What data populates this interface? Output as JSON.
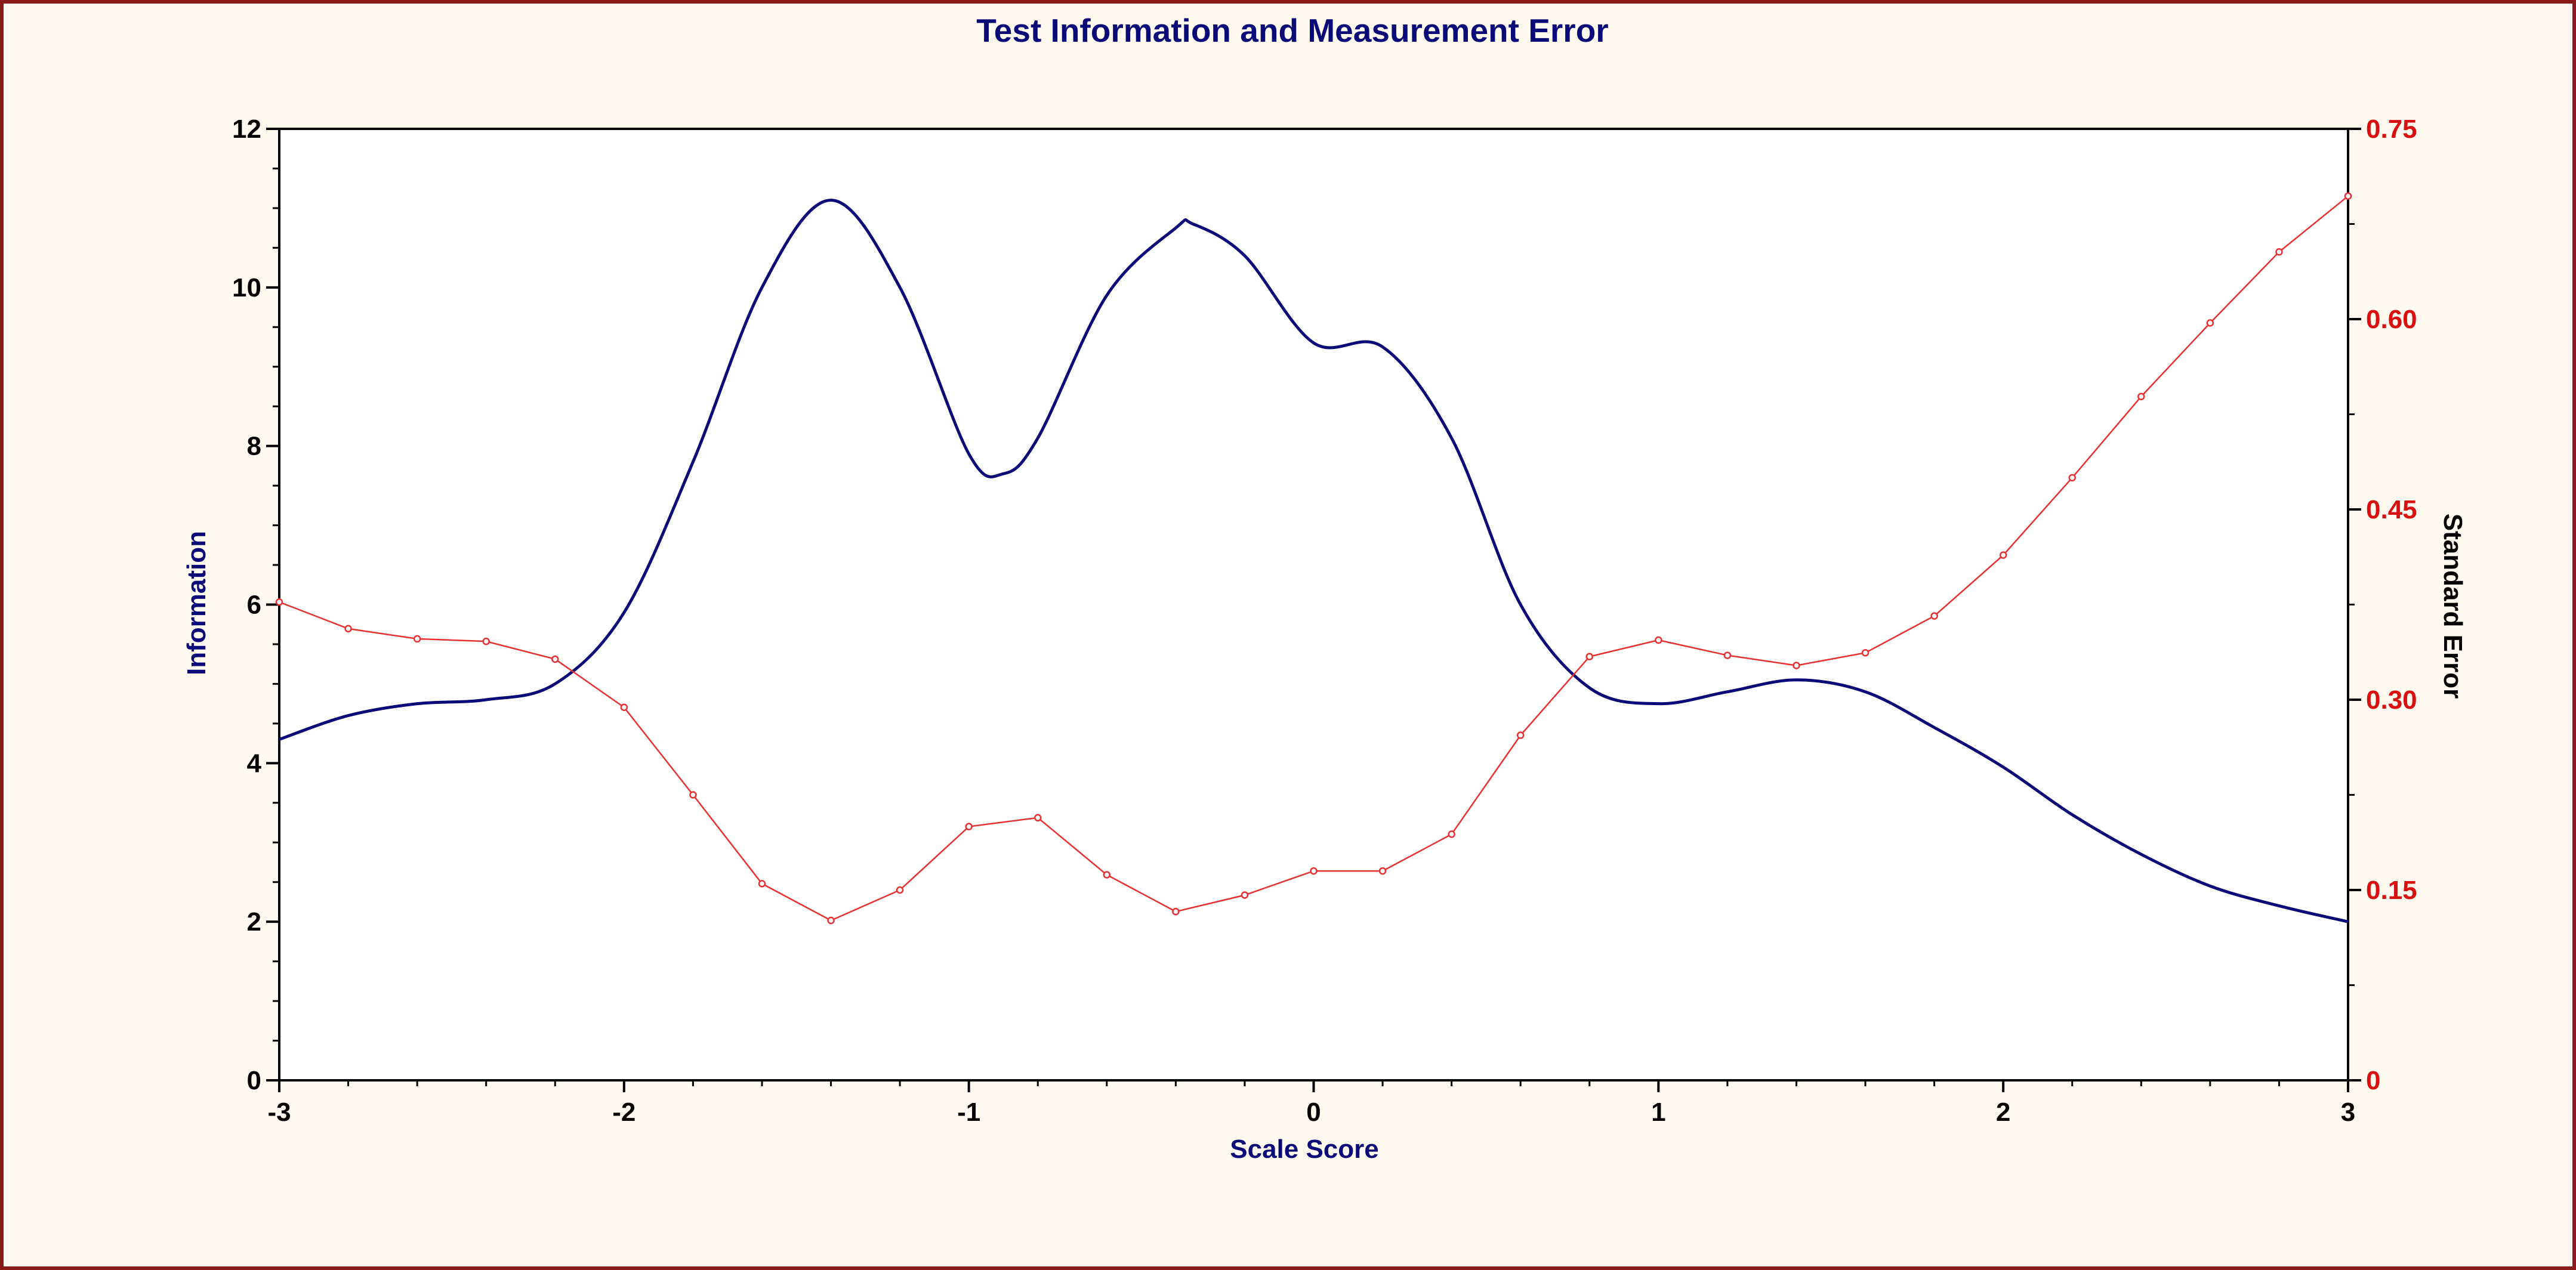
{
  "chart_data": {
    "type": "line",
    "title": "Test Information and Measurement Error",
    "xlabel": "Scale Score",
    "ylabel_left": "Information",
    "ylabel_right": "Standard Error",
    "xlim": [
      -3,
      3
    ],
    "ylim_left": [
      0,
      12
    ],
    "ylim_right": [
      0,
      0.75
    ],
    "x_ticks": [
      -3,
      -2,
      -1,
      0,
      1,
      2,
      3
    ],
    "x_tick_labels": [
      "-3",
      "-2",
      "-1",
      "0",
      "1",
      "2",
      "3"
    ],
    "y_left_ticks": [
      0,
      2,
      4,
      6,
      8,
      10,
      12
    ],
    "y_left_tick_labels": [
      "0",
      "2",
      "4",
      "6",
      "8",
      "10",
      "12"
    ],
    "y_right_ticks": [
      0,
      0.15,
      0.3,
      0.45,
      0.6,
      0.75
    ],
    "y_right_tick_labels": [
      "0",
      "0.15",
      "0.30",
      "0.45",
      "0.60",
      "0.75"
    ],
    "grid": false,
    "colors": {
      "information": "#0a0a78",
      "standard_error": "#e83030",
      "title": "#0a0a78",
      "right_axis_ticks": "#d81010",
      "left_axis_label": "#0a0a78",
      "frame": "#8b1a1a",
      "background": "#fffaf0",
      "plot_background": "#ffffff"
    },
    "series": [
      {
        "axis": "left",
        "style": "smooth-line",
        "x": [
          -3.0,
          -2.8,
          -2.6,
          -2.4,
          -2.2,
          -2.0,
          -1.8,
          -1.6,
          -1.4,
          -1.2,
          -1.0,
          -0.9,
          -0.8,
          -0.6,
          -0.4,
          -0.35,
          -0.2,
          0.0,
          0.2,
          0.4,
          0.6,
          0.8,
          1.0,
          1.2,
          1.4,
          1.6,
          1.8,
          2.0,
          2.2,
          2.4,
          2.6,
          2.8,
          3.0
        ],
        "values": [
          4.3,
          4.6,
          4.75,
          4.8,
          5.0,
          5.9,
          7.8,
          10.0,
          11.1,
          10.0,
          7.9,
          7.65,
          8.1,
          9.9,
          10.75,
          10.8,
          10.4,
          9.3,
          9.25,
          8.1,
          6.0,
          4.95,
          4.75,
          4.9,
          5.05,
          4.9,
          4.45,
          3.95,
          3.35,
          2.85,
          2.45,
          2.2,
          2.0
        ]
      },
      {
        "axis": "right",
        "style": "line-markers",
        "x": [
          -3.0,
          -2.8,
          -2.6,
          -2.4,
          -2.2,
          -2.0,
          -1.8,
          -1.6,
          -1.4,
          -1.2,
          -1.0,
          -0.8,
          -0.6,
          -0.4,
          -0.2,
          0.0,
          0.2,
          0.4,
          0.6,
          0.8,
          1.0,
          1.2,
          1.4,
          1.6,
          1.8,
          2.0,
          2.2,
          2.4,
          2.6,
          2.8,
          3.0
        ],
        "values": [
          0.377,
          0.356,
          0.348,
          0.346,
          0.332,
          0.294,
          0.225,
          0.155,
          0.126,
          0.15,
          0.2,
          0.207,
          0.162,
          0.133,
          0.146,
          0.165,
          0.165,
          0.194,
          0.272,
          0.334,
          0.347,
          0.335,
          0.327,
          0.337,
          0.366,
          0.414,
          0.475,
          0.539,
          0.597,
          0.653,
          0.697
        ]
      }
    ]
  }
}
